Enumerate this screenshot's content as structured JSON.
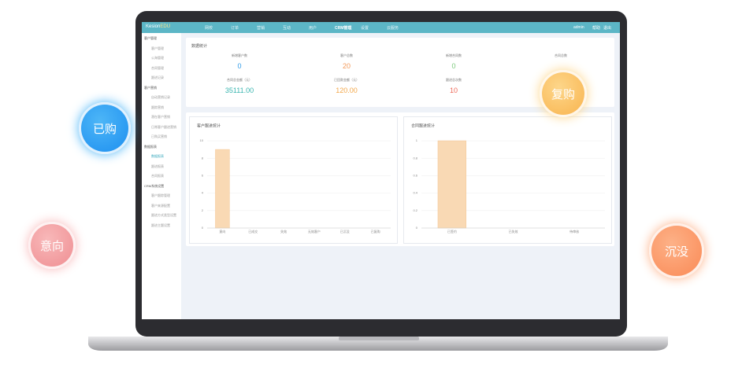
{
  "bubbles": [
    "已购",
    "意向",
    "复购",
    "沉没"
  ],
  "topbar": {
    "logo": "Kesion",
    "logo_suffix": "EDU",
    "nav": [
      "网校",
      "订单",
      "营销",
      "互动",
      "用户",
      "CRM管理",
      "设置",
      "云服务"
    ],
    "active_nav": 5,
    "user": "admin",
    "links": [
      "帮助",
      "退出"
    ]
  },
  "sidebar": [
    {
      "title": "客户管理",
      "items": [
        "客户管理",
        "公海管理",
        "合同管理",
        "跟进记录"
      ]
    },
    {
      "title": "客户营销",
      "items": [
        "自动营销记录",
        "跟踪营销",
        "潜在客户营销",
        "日常客户跟进营销",
        "已购买营销"
      ]
    },
    {
      "title": "数据报表",
      "items": [
        "数据报表",
        "跟进报表",
        "合同报表"
      ],
      "active_item": 0
    },
    {
      "title": "CRM系统设置",
      "items": [
        "客户跟踪管理",
        "客户来源配置",
        "跟进方式类型设置",
        "跟进主题设置"
      ]
    }
  ],
  "stats": {
    "title": "数据统计",
    "rows": [
      [
        {
          "label": "新增客户数",
          "value": "0",
          "color": "#2f9be8"
        },
        {
          "label": "客户总数",
          "value": "20",
          "color": "#f39a5b"
        },
        {
          "label": "新增合同数",
          "value": "0",
          "color": "#7cc97c"
        },
        {
          "label": "合同总数"
        }
      ],
      [
        {
          "label": "合同总金额（元）",
          "value": "35111.00",
          "color": "#3bb6b0"
        },
        {
          "label": "已回款金额（元）",
          "value": "120.00",
          "color": "#f3a84b"
        },
        {
          "label": "跟进总次数",
          "value": "10",
          "color": "#ef6b5b"
        }
      ]
    ]
  },
  "charts": [
    {
      "type": "bar",
      "title": "客户跟进统计",
      "categories": [
        "意向",
        "已成交",
        "失效",
        "无效客户",
        "已沉没",
        "已复购"
      ],
      "values": [
        9,
        0,
        0,
        0,
        0,
        0
      ],
      "ylim": [
        0,
        10
      ],
      "yticks": [
        0,
        2,
        4,
        6,
        8,
        10
      ],
      "color": "#f9d9b4",
      "grid": true
    },
    {
      "type": "bar",
      "title": "合同跟进统计",
      "categories": [
        "已签约",
        "已失效",
        "待审核"
      ],
      "values": [
        1,
        0,
        0
      ],
      "ylim": [
        0,
        1
      ],
      "yticks": [
        0,
        0.2,
        0.4,
        0.6,
        0.8,
        1
      ],
      "color": "#f9d9b4",
      "grid": true
    }
  ]
}
